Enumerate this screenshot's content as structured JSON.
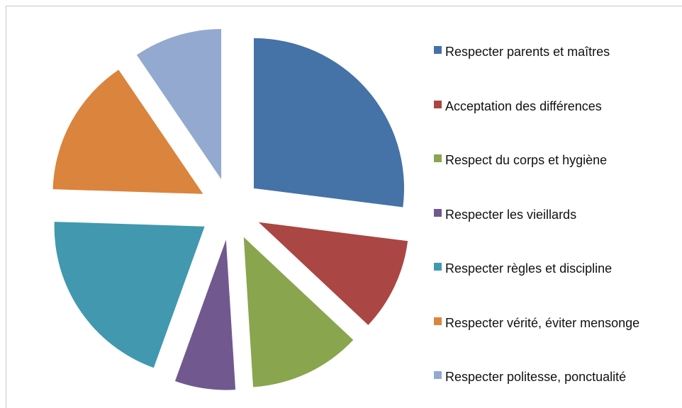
{
  "chart_data": {
    "type": "pie",
    "categories": [
      "Respecter parents et maîtres",
      "Acceptation  des différences",
      "Respect du corps et hygiène",
      "Respecter les vieillards",
      "Respecter règles et discipline",
      "Respecter vérité, éviter mensonge",
      "Respecter politesse, ponctualité"
    ],
    "values": [
      27,
      10,
      12,
      6.5,
      20,
      15,
      9.5
    ],
    "colors": [
      "#4572a7",
      "#aa4643",
      "#89a54e",
      "#71588f",
      "#4198af",
      "#db843d",
      "#93a9cf"
    ],
    "legend": "right"
  }
}
